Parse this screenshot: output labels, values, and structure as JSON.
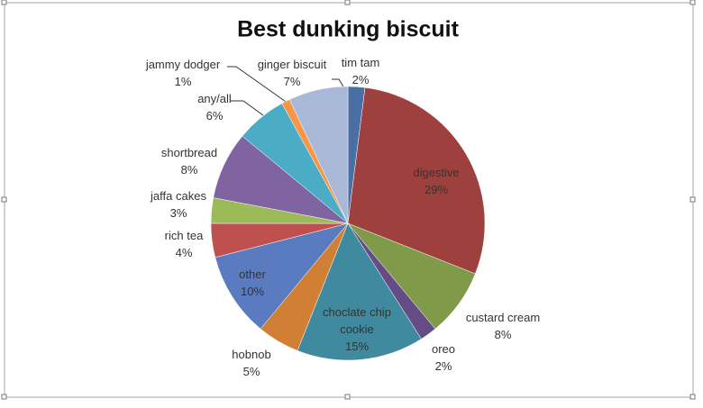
{
  "chart_data": {
    "type": "pie",
    "title": "Best dunking biscuit",
    "categories": [
      "tim tam",
      "digestive",
      "custard cream",
      "oreo",
      "choclate chip cookie",
      "hobnob",
      "other",
      "rich tea",
      "jaffa cakes",
      "shortbread",
      "any/all",
      "jammy dodger",
      "ginger biscuit"
    ],
    "values": [
      2,
      29,
      8,
      2,
      15,
      5,
      10,
      4,
      3,
      8,
      6,
      1,
      7
    ],
    "value_labels": [
      "2%",
      "29%",
      "8%",
      "2%",
      "15%",
      "5%",
      "10%",
      "4%",
      "3%",
      "8%",
      "6%",
      "1%",
      "7%"
    ],
    "colors": [
      "#4a6fa5",
      "#9e413e",
      "#7f9a48",
      "#664c86",
      "#3f8a9e",
      "#d07f35",
      "#5b7bc0",
      "#c0504d",
      "#9bbb59",
      "#8064a2",
      "#4bacc6",
      "#f79646",
      "#aab8d8"
    ]
  }
}
